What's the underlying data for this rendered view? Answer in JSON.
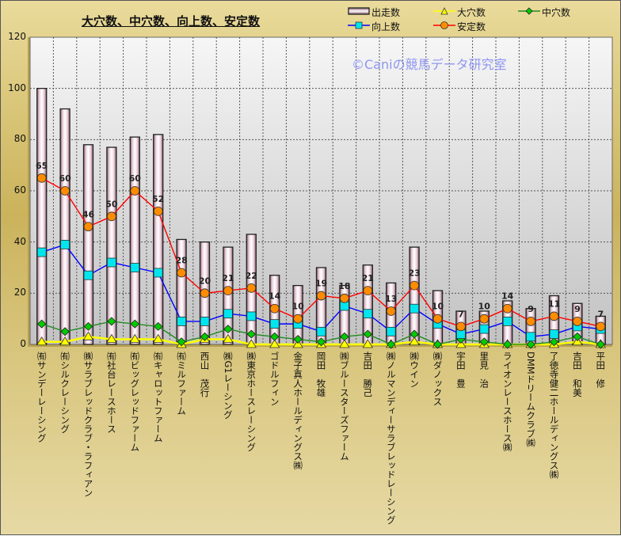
{
  "chart_data": {
    "type": "bar",
    "title": "大穴数、中穴数、向上数、安定数",
    "watermark": "©Caniの競馬データ研究室",
    "ylim": [
      0,
      120
    ],
    "yticks": [
      0,
      20,
      40,
      60,
      80,
      100,
      120
    ],
    "grid": true,
    "legend_position": "top-right",
    "categories": [
      "㈲サンデーレーシング",
      "㈲シルクレーシング",
      "㈱サラブレッドクラブ・ラフィアン",
      "㈲社台レースホース",
      "㈲ビッグレッドファーム",
      "㈲キャロットファーム",
      "㈲ミルファーム",
      "西山　茂行",
      "㈱G1レーシング",
      "㈱東京ホースレーシング",
      "ゴドルフィン",
      "金子真人ホールディングス㈱",
      "岡田　牧雄",
      "㈱ブルースターズファーム",
      "吉田　勝己",
      "㈱ノルマンディーサラブレッドレーシング",
      "㈱ウイン",
      "㈱ダノックス",
      "宇田　豊",
      "里見　治",
      "ライオンレースホース㈱",
      "DMMドリームクラブ㈱",
      "了徳寺健二ホールディングス㈱",
      "吉田　和美",
      "平田　修"
    ],
    "series": [
      {
        "name": "出走数",
        "kind": "bar",
        "color": "#f0dde6",
        "values": [
          100,
          92,
          78,
          77,
          81,
          82,
          41,
          40,
          38,
          43,
          27,
          23,
          30,
          23,
          31,
          24,
          38,
          21,
          13,
          13,
          17,
          14,
          19,
          16,
          11
        ]
      },
      {
        "name": "大穴数",
        "kind": "line",
        "marker": "triangle",
        "color": "#ffff00",
        "values": [
          1,
          1,
          3,
          2,
          2,
          2,
          0,
          2,
          2,
          0,
          0,
          0,
          0,
          0,
          0,
          0,
          1,
          0,
          0,
          0,
          0,
          0,
          0,
          1,
          0
        ]
      },
      {
        "name": "中穴数",
        "kind": "line",
        "marker": "diamond",
        "color": "#228b22",
        "fill": "#00cc00",
        "values": [
          8,
          5,
          7,
          9,
          8,
          7,
          1,
          3,
          6,
          4,
          3,
          2,
          1,
          3,
          4,
          0,
          4,
          0,
          2,
          1,
          0,
          0,
          1,
          3,
          0
        ]
      },
      {
        "name": "向上数",
        "kind": "line",
        "marker": "square",
        "color": "#0000ff",
        "fill": "#00e5ee",
        "values": [
          36,
          39,
          27,
          32,
          30,
          28,
          9,
          9,
          12,
          11,
          8,
          8,
          5,
          15,
          12,
          5,
          14,
          8,
          4,
          6,
          9,
          3,
          4,
          7,
          6
        ]
      },
      {
        "name": "安定数",
        "kind": "line",
        "marker": "circle",
        "color": "#ff0000",
        "fill": "#ff8c00",
        "labels": true,
        "values": [
          65,
          60,
          46,
          50,
          60,
          52,
          28,
          20,
          21,
          22,
          14,
          10,
          19,
          18,
          21,
          13,
          23,
          10,
          7,
          10,
          14,
          9,
          11,
          9,
          7
        ]
      }
    ]
  }
}
